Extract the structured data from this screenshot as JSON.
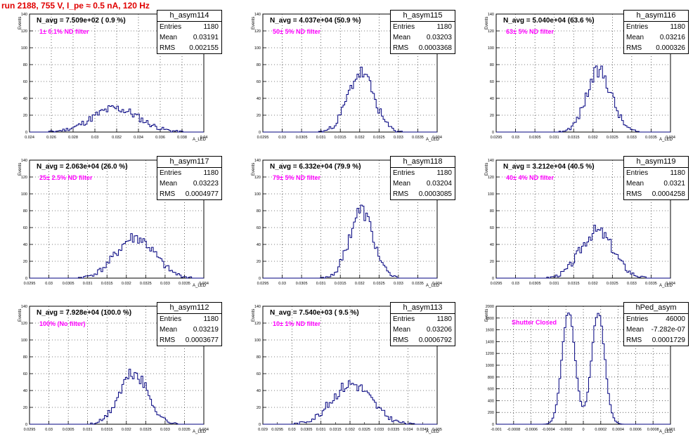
{
  "page_title": "run 2188,   755 V, I_pe ≈ 0.5 nA, 120 Hz",
  "stat_labels": {
    "entries": "Entries",
    "mean": "Mean",
    "rms": "RMS"
  },
  "axis_labels": {
    "y": "Events",
    "x": "A_LED"
  },
  "colors": {
    "histogram": "#00007f",
    "title": "#e00000",
    "filter_note": "#ff00ff",
    "grid": "#000000"
  },
  "chart_data": [
    {
      "type": "histogram",
      "name": "h_asym114",
      "n_avg": "N_avg = 7.509e+02 ( 0.9 %)",
      "note": "1± 0.1% ND filter",
      "entries": "1180",
      "mean": "0.03191",
      "rms": "0.002155",
      "xlim": [
        0.024,
        0.04
      ],
      "ylim": [
        0,
        140
      ],
      "center": 0.0319,
      "sigma": 0.00215,
      "peak": 28,
      "seed": 11,
      "x_ticks": [
        "0.024",
        "0.026",
        "0.028",
        "0.03",
        "0.032",
        "0.034",
        "0.036",
        "0.038",
        "0.04"
      ],
      "y_ticks": [
        "0",
        "20",
        "40",
        "60",
        "80",
        "100",
        "120",
        "140"
      ]
    },
    {
      "type": "histogram",
      "name": "h_asym115",
      "n_avg": "N_avg = 4.037e+04 (50.9 %)",
      "note": "50± 5% ND filter",
      "entries": "1180",
      "mean": "0.03203",
      "rms": "0.0003368",
      "xlim": [
        0.0295,
        0.034
      ],
      "ylim": [
        0,
        140
      ],
      "center": 0.03203,
      "sigma": 0.000337,
      "peak": 70,
      "seed": 23,
      "x_ticks": [
        "0.0295",
        "0.03",
        "0.0305",
        "0.031",
        "0.0315",
        "0.032",
        "0.0325",
        "0.033",
        "0.0335",
        "0.034"
      ],
      "y_ticks": [
        "0",
        "20",
        "40",
        "60",
        "80",
        "100",
        "120",
        "140"
      ]
    },
    {
      "type": "histogram",
      "name": "h_asym116",
      "n_avg": "N_avg = 5.040e+04 (63.6 %)",
      "note": "63± 5% ND filter",
      "entries": "1180",
      "mean": "0.03216",
      "rms": "0.000326",
      "xlim": [
        0.0295,
        0.034
      ],
      "ylim": [
        0,
        140
      ],
      "center": 0.03216,
      "sigma": 0.000326,
      "peak": 72,
      "seed": 37,
      "x_ticks": [
        "0.0295",
        "0.03",
        "0.0305",
        "0.031",
        "0.0315",
        "0.032",
        "0.0325",
        "0.033",
        "0.0335",
        "0.034"
      ],
      "y_ticks": [
        "0",
        "20",
        "40",
        "60",
        "80",
        "100",
        "120",
        "140"
      ]
    },
    {
      "type": "histogram",
      "name": "h_asym117",
      "n_avg": "N_avg = 2.063e+04 (26.0 %)",
      "note": "25± 2.5% ND filter",
      "entries": "1180",
      "mean": "0.03223",
      "rms": "0.0004977",
      "xlim": [
        0.0295,
        0.034
      ],
      "ylim": [
        0,
        140
      ],
      "center": 0.03223,
      "sigma": 0.000498,
      "peak": 48,
      "seed": 41,
      "x_ticks": [
        "0.0295",
        "0.03",
        "0.0305",
        "0.031",
        "0.0315",
        "0.032",
        "0.0325",
        "0.033",
        "0.0335",
        "0.034"
      ],
      "y_ticks": [
        "0",
        "20",
        "40",
        "60",
        "80",
        "100",
        "120",
        "140"
      ]
    },
    {
      "type": "histogram",
      "name": "h_asym118",
      "n_avg": "N_avg = 6.332e+04 (79.9 %)",
      "note": "79± 5% ND filter",
      "entries": "1180",
      "mean": "0.03204",
      "rms": "0.0003085",
      "xlim": [
        0.0295,
        0.034
      ],
      "ylim": [
        0,
        140
      ],
      "center": 0.03204,
      "sigma": 0.000309,
      "peak": 80,
      "seed": 53,
      "x_ticks": [
        "0.0295",
        "0.03",
        "0.0305",
        "0.031",
        "0.0315",
        "0.032",
        "0.0325",
        "0.033",
        "0.0335",
        "0.034"
      ],
      "y_ticks": [
        "0",
        "20",
        "40",
        "60",
        "80",
        "100",
        "120",
        "140"
      ]
    },
    {
      "type": "histogram",
      "name": "h_asym119",
      "n_avg": "N_avg = 3.212e+04 (40.5 %)",
      "note": "40± 4% ND filter",
      "entries": "1180",
      "mean": "0.0321",
      "rms": "0.0004258",
      "xlim": [
        0.0295,
        0.034
      ],
      "ylim": [
        0,
        140
      ],
      "center": 0.0321,
      "sigma": 0.000426,
      "peak": 56,
      "seed": 67,
      "x_ticks": [
        "0.0295",
        "0.03",
        "0.0305",
        "0.031",
        "0.0315",
        "0.032",
        "0.0325",
        "0.033",
        "0.0335",
        "0.034"
      ],
      "y_ticks": [
        "0",
        "20",
        "40",
        "60",
        "80",
        "100",
        "120",
        "140"
      ]
    },
    {
      "type": "histogram",
      "name": "h_asym112",
      "n_avg": "N_avg = 7.928e+04 (100.0 %)",
      "note": "100% (No filter)",
      "entries": "1180",
      "mean": "0.03219",
      "rms": "0.0003677",
      "xlim": [
        0.0295,
        0.034
      ],
      "ylim": [
        0,
        140
      ],
      "center": 0.03219,
      "sigma": 0.000368,
      "peak": 60,
      "seed": 71,
      "x_ticks": [
        "0.0295",
        "0.03",
        "0.0305",
        "0.031",
        "0.0315",
        "0.032",
        "0.0325",
        "0.033",
        "0.0335",
        "0.034"
      ],
      "y_ticks": [
        "0",
        "20",
        "40",
        "60",
        "80",
        "100",
        "120",
        "140"
      ]
    },
    {
      "type": "histogram",
      "name": "h_asym113",
      "n_avg": "N_avg = 7.540e+03 ( 9.5 %)",
      "note": "10± 1% ND filter",
      "entries": "1180",
      "mean": "0.03206",
      "rms": "0.0006792",
      "xlim": [
        0.029,
        0.035
      ],
      "ylim": [
        0,
        140
      ],
      "center": 0.03206,
      "sigma": 0.000679,
      "peak": 48,
      "seed": 83,
      "x_ticks": [
        "0.029",
        "0.03",
        "0.031",
        "0.032",
        "0.033",
        "0.034",
        "0.035"
      ],
      "x_minor_ticks": [
        "0.0295",
        "0.0305",
        "0.0315",
        "0.0325",
        "0.0335",
        "0.0345"
      ],
      "y_ticks": [
        "0",
        "20",
        "40",
        "60",
        "80",
        "100",
        "120",
        "140"
      ]
    },
    {
      "type": "histogram",
      "name": "hPed_asym",
      "n_avg": "",
      "note": "Shutter Closed",
      "entries": "46000",
      "mean": "-7.282e-07",
      "rms": "0.0001729",
      "xlim": [
        -0.001,
        0.001
      ],
      "ylim": [
        0,
        2000
      ],
      "bimodal": true,
      "centers": [
        -0.00017,
        0.00017
      ],
      "sigma": 7.5e-05,
      "peak": 1900,
      "seed": 97,
      "x_ticks": [
        "-0.001",
        "-0.0008",
        "-0.0006",
        "-0.0004",
        "-0.0002",
        "0",
        "0.0002",
        "0.0004",
        "0.0006",
        "0.0008",
        "0.001"
      ],
      "y_ticks": [
        "0",
        "200",
        "400",
        "600",
        "800",
        "1000",
        "1200",
        "1400",
        "1600",
        "1800",
        "2000"
      ]
    }
  ]
}
